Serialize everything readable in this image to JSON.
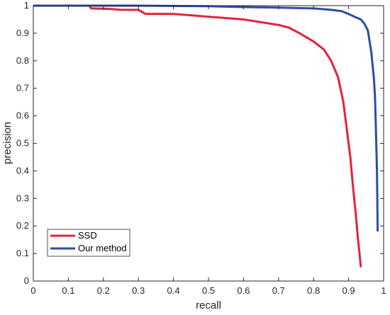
{
  "chart_data": {
    "type": "line",
    "xlabel": "recall",
    "ylabel": "precision",
    "xlim": [
      0,
      1
    ],
    "ylim": [
      0,
      1
    ],
    "xticks": [
      "0",
      "0.1",
      "0.2",
      "0.3",
      "0.4",
      "0.5",
      "0.6",
      "0.7",
      "0.8",
      "0.9",
      "1"
    ],
    "yticks": [
      "0",
      "0.1",
      "0.2",
      "0.3",
      "0.4",
      "0.5",
      "0.6",
      "0.7",
      "0.8",
      "0.9",
      "1"
    ],
    "grid": false,
    "legend_position": "bottom-left",
    "series": [
      {
        "name": "SSD",
        "color": "#e8203a",
        "points": [
          [
            0.0,
            1.0
          ],
          [
            0.16,
            1.0
          ],
          [
            0.165,
            0.99
          ],
          [
            0.22,
            0.988
          ],
          [
            0.25,
            0.985
          ],
          [
            0.3,
            0.985
          ],
          [
            0.32,
            0.97
          ],
          [
            0.4,
            0.97
          ],
          [
            0.45,
            0.965
          ],
          [
            0.5,
            0.96
          ],
          [
            0.55,
            0.955
          ],
          [
            0.6,
            0.95
          ],
          [
            0.65,
            0.94
          ],
          [
            0.7,
            0.93
          ],
          [
            0.73,
            0.92
          ],
          [
            0.76,
            0.9
          ],
          [
            0.8,
            0.87
          ],
          [
            0.83,
            0.84
          ],
          [
            0.85,
            0.8
          ],
          [
            0.87,
            0.74
          ],
          [
            0.885,
            0.65
          ],
          [
            0.895,
            0.55
          ],
          [
            0.905,
            0.45
          ],
          [
            0.912,
            0.35
          ],
          [
            0.92,
            0.25
          ],
          [
            0.927,
            0.15
          ],
          [
            0.932,
            0.09
          ],
          [
            0.935,
            0.05
          ]
        ]
      },
      {
        "name": "Our method",
        "color": "#2a4dab",
        "points": [
          [
            0.0,
            1.0
          ],
          [
            0.3,
            1.0
          ],
          [
            0.5,
            0.998
          ],
          [
            0.6,
            0.995
          ],
          [
            0.7,
            0.993
          ],
          [
            0.8,
            0.99
          ],
          [
            0.85,
            0.985
          ],
          [
            0.88,
            0.98
          ],
          [
            0.9,
            0.97
          ],
          [
            0.92,
            0.958
          ],
          [
            0.935,
            0.95
          ],
          [
            0.945,
            0.935
          ],
          [
            0.955,
            0.91
          ],
          [
            0.96,
            0.87
          ],
          [
            0.965,
            0.83
          ],
          [
            0.968,
            0.79
          ],
          [
            0.972,
            0.74
          ],
          [
            0.975,
            0.68
          ],
          [
            0.977,
            0.6
          ],
          [
            0.979,
            0.5
          ],
          [
            0.981,
            0.4
          ],
          [
            0.982,
            0.3
          ],
          [
            0.983,
            0.18
          ]
        ]
      }
    ]
  }
}
